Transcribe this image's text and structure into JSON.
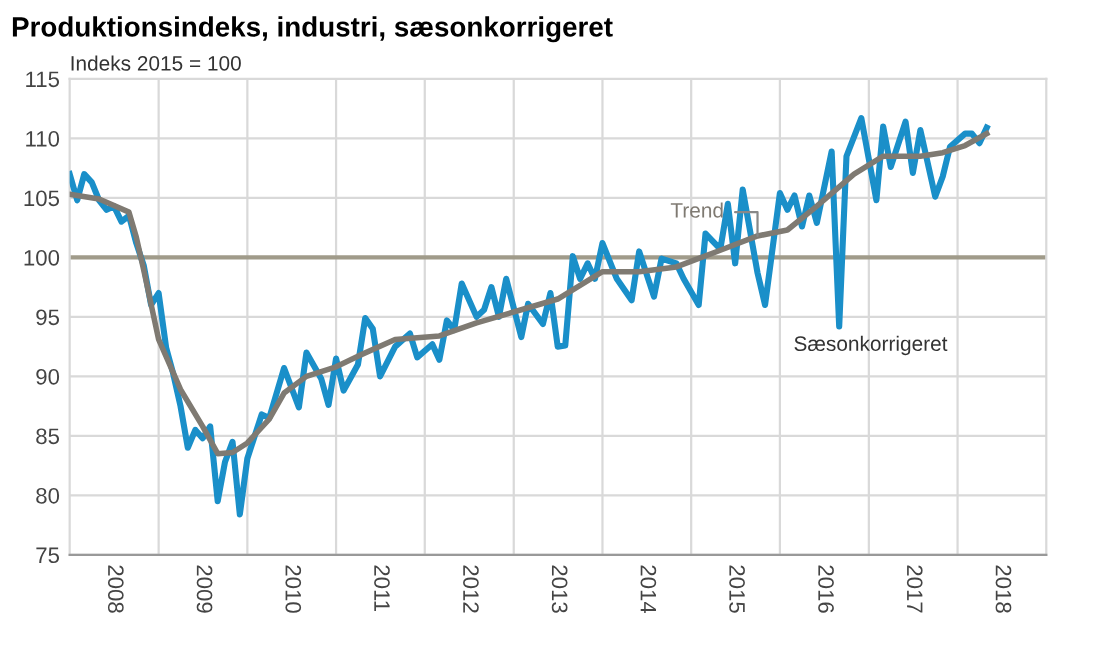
{
  "chart_data": {
    "type": "line",
    "title": "Produktionsindeks, industri, sæsonkorrigeret",
    "subtitle": "Indeks 2015 = 100",
    "series": [
      {
        "name": "Sæsonkorrigeret",
        "color": "#1a8fc9",
        "x": [
          "2008-01",
          "2008-02",
          "2008-03",
          "2008-04",
          "2008-05",
          "2008-06",
          "2008-07",
          "2008-08",
          "2008-09",
          "2008-10",
          "2008-11",
          "2008-12",
          "2009-01",
          "2009-02",
          "2009-03",
          "2009-04",
          "2009-05",
          "2009-06",
          "2009-07",
          "2009-08",
          "2009-09",
          "2009-10",
          "2009-11",
          "2009-12",
          "2010-01",
          "2010-03",
          "2010-04",
          "2010-06",
          "2010-08",
          "2010-09",
          "2010-11",
          "2010-12",
          "2011-01",
          "2011-02",
          "2011-04",
          "2011-05",
          "2011-06",
          "2011-07",
          "2011-09",
          "2011-11",
          "2011-12",
          "2012-02",
          "2012-03",
          "2012-04",
          "2012-05",
          "2012-06",
          "2012-08",
          "2012-09",
          "2012-10",
          "2012-11",
          "2012-12",
          "2013-02",
          "2013-03",
          "2013-05",
          "2013-06",
          "2013-07",
          "2013-08",
          "2013-09",
          "2013-10",
          "2013-11",
          "2013-12",
          "2014-01",
          "2014-03",
          "2014-05",
          "2014-06",
          "2014-08",
          "2014-09",
          "2014-11",
          "2014-12",
          "2015-02",
          "2015-03",
          "2015-05",
          "2015-06",
          "2015-07",
          "2015-08",
          "2015-10",
          "2015-11",
          "2016-01",
          "2016-02",
          "2016-03",
          "2016-04",
          "2016-05",
          "2016-06",
          "2016-08",
          "2016-09",
          "2016-10",
          "2016-12",
          "2017-02",
          "2017-03",
          "2017-04",
          "2017-06",
          "2017-07",
          "2017-08",
          "2017-10",
          "2017-11",
          "2017-12",
          "2018-02",
          "2018-03",
          "2018-04",
          "2018-05"
        ],
        "values": [
          107,
          104.8,
          107,
          106.3,
          104.8,
          104,
          104.3,
          103,
          103.5,
          101.2,
          99.3,
          96,
          97,
          92.4,
          90.3,
          87.5,
          84,
          85.5,
          84.8,
          85.8,
          79.5,
          82.8,
          84.5,
          78.4,
          83.1,
          86.8,
          86.5,
          90.7,
          87.4,
          92,
          89.8,
          87.6,
          91.5,
          88.8,
          91,
          94.9,
          94,
          90,
          92.5,
          93.6,
          91.6,
          92.7,
          91.4,
          94.7,
          93.9,
          97.8,
          95,
          95.6,
          97.5,
          95,
          98.2,
          93.3,
          96.1,
          94.4,
          97,
          92.5,
          92.6,
          100.1,
          98.2,
          99.5,
          98.2,
          101.2,
          98.2,
          96.4,
          100.5,
          96.7,
          99.9,
          99.5,
          98.2,
          96,
          102,
          100.7,
          104.5,
          99.5,
          105.7,
          98.7,
          96,
          105.4,
          104,
          105.2,
          102.6,
          105.2,
          102.9,
          108.9,
          94.2,
          108.5,
          111.7,
          104.8,
          111,
          107.6,
          111.4,
          107.1,
          110.7,
          105.1,
          106.8,
          109.3,
          110.4,
          110.4,
          109.6,
          110.9
        ]
      },
      {
        "name": "Trend",
        "color": "#7f7a72",
        "x": [
          "2008-01",
          "2008-05",
          "2008-09",
          "2008-10",
          "2008-11",
          "2009-01",
          "2009-04",
          "2009-07",
          "2009-09",
          "2009-11",
          "2010-01",
          "2010-04",
          "2010-06",
          "2010-09",
          "2011-01",
          "2011-04",
          "2011-09",
          "2012-03",
          "2012-08",
          "2013-02",
          "2013-07",
          "2014-01",
          "2014-06",
          "2014-11",
          "2015-05",
          "2015-10",
          "2016-02",
          "2016-06",
          "2016-11",
          "2017-03",
          "2017-08",
          "2017-11",
          "2018-02",
          "2018-05"
        ],
        "values": [
          105.3,
          104.9,
          103.8,
          101.7,
          98.9,
          93.1,
          88.9,
          85.8,
          83.5,
          83.6,
          84.4,
          86.4,
          88.6,
          90,
          90.8,
          91.7,
          93.1,
          93.4,
          94.5,
          95.6,
          96.5,
          98.8,
          98.8,
          99.2,
          100.6,
          101.8,
          102.3,
          104.3,
          107,
          108.5,
          108.5,
          108.8,
          109.4,
          110.4
        ]
      }
    ],
    "xlim": [
      "2008-01",
      "2019-01"
    ],
    "xticks": [
      {
        "value": "2008-07",
        "label": "2008"
      },
      {
        "value": "2009-01",
        "label": null
      },
      {
        "value": "2009-07",
        "label": "2009"
      },
      {
        "value": "2010-01",
        "label": null
      },
      {
        "value": "2010-07",
        "label": "2010"
      },
      {
        "value": "2011-01",
        "label": null
      },
      {
        "value": "2011-07",
        "label": "2011"
      },
      {
        "value": "2012-01",
        "label": null
      },
      {
        "value": "2012-07",
        "label": "2012"
      },
      {
        "value": "2013-01",
        "label": null
      },
      {
        "value": "2013-07",
        "label": "2013"
      },
      {
        "value": "2014-01",
        "label": null
      },
      {
        "value": "2014-07",
        "label": "2014"
      },
      {
        "value": "2015-01",
        "label": null
      },
      {
        "value": "2015-07",
        "label": "2015"
      },
      {
        "value": "2016-01",
        "label": null
      },
      {
        "value": "2016-07",
        "label": "2016"
      },
      {
        "value": "2017-01",
        "label": null
      },
      {
        "value": "2017-07",
        "label": "2017"
      },
      {
        "value": "2018-01",
        "label": null
      },
      {
        "value": "2018-07",
        "label": "2018"
      }
    ],
    "ylim": [
      75,
      115
    ],
    "yticks": [
      75,
      80,
      85,
      90,
      95,
      100,
      105,
      110,
      115
    ],
    "ref_lines": [
      {
        "axis": "y",
        "value": 100,
        "color": "#a09b8a"
      }
    ],
    "grid": true
  }
}
